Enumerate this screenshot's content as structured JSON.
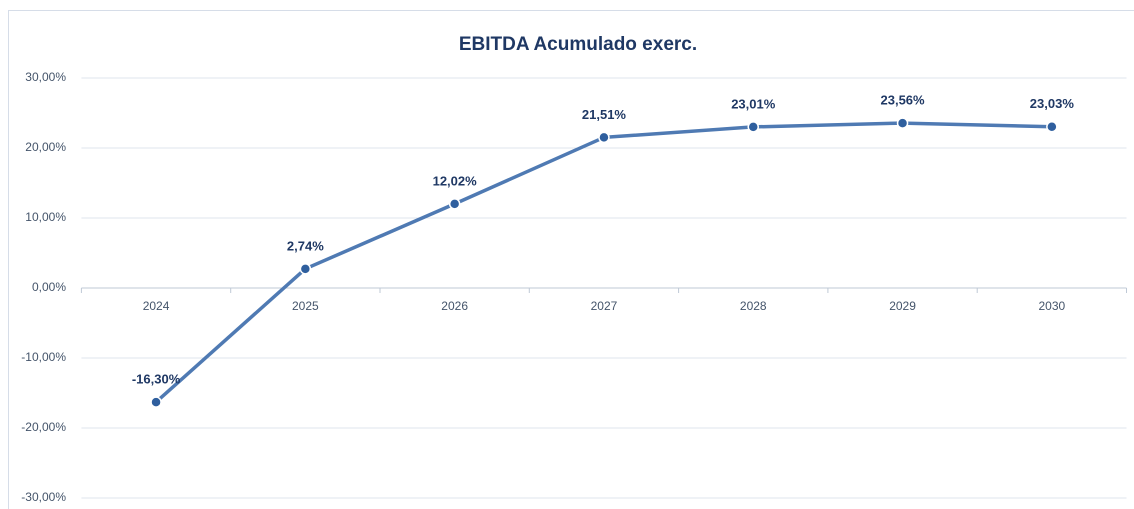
{
  "chart_data": {
    "type": "line",
    "title": "EBITDA Acumulado exerc.",
    "categories": [
      "2024",
      "2025",
      "2026",
      "2027",
      "2028",
      "2029",
      "2030"
    ],
    "values": [
      -16.3,
      2.74,
      12.02,
      21.51,
      23.01,
      23.56,
      23.03
    ],
    "value_labels": [
      "-16,30%",
      "2,74%",
      "12,02%",
      "21,51%",
      "23,01%",
      "23,56%",
      "23,03%"
    ],
    "color": "#4f7ab3",
    "ylim": [
      -30,
      30
    ],
    "yticks": [
      {
        "value": -30,
        "label": "-30,00%"
      },
      {
        "value": -20,
        "label": "-20,00%"
      },
      {
        "value": -10,
        "label": "-10,00%"
      },
      {
        "value": 0,
        "label": "0,00%"
      },
      {
        "value": 10,
        "label": "10,00%"
      },
      {
        "value": 20,
        "label": "20,00%"
      },
      {
        "value": 30,
        "label": "30,00%"
      }
    ],
    "grid": true
  }
}
